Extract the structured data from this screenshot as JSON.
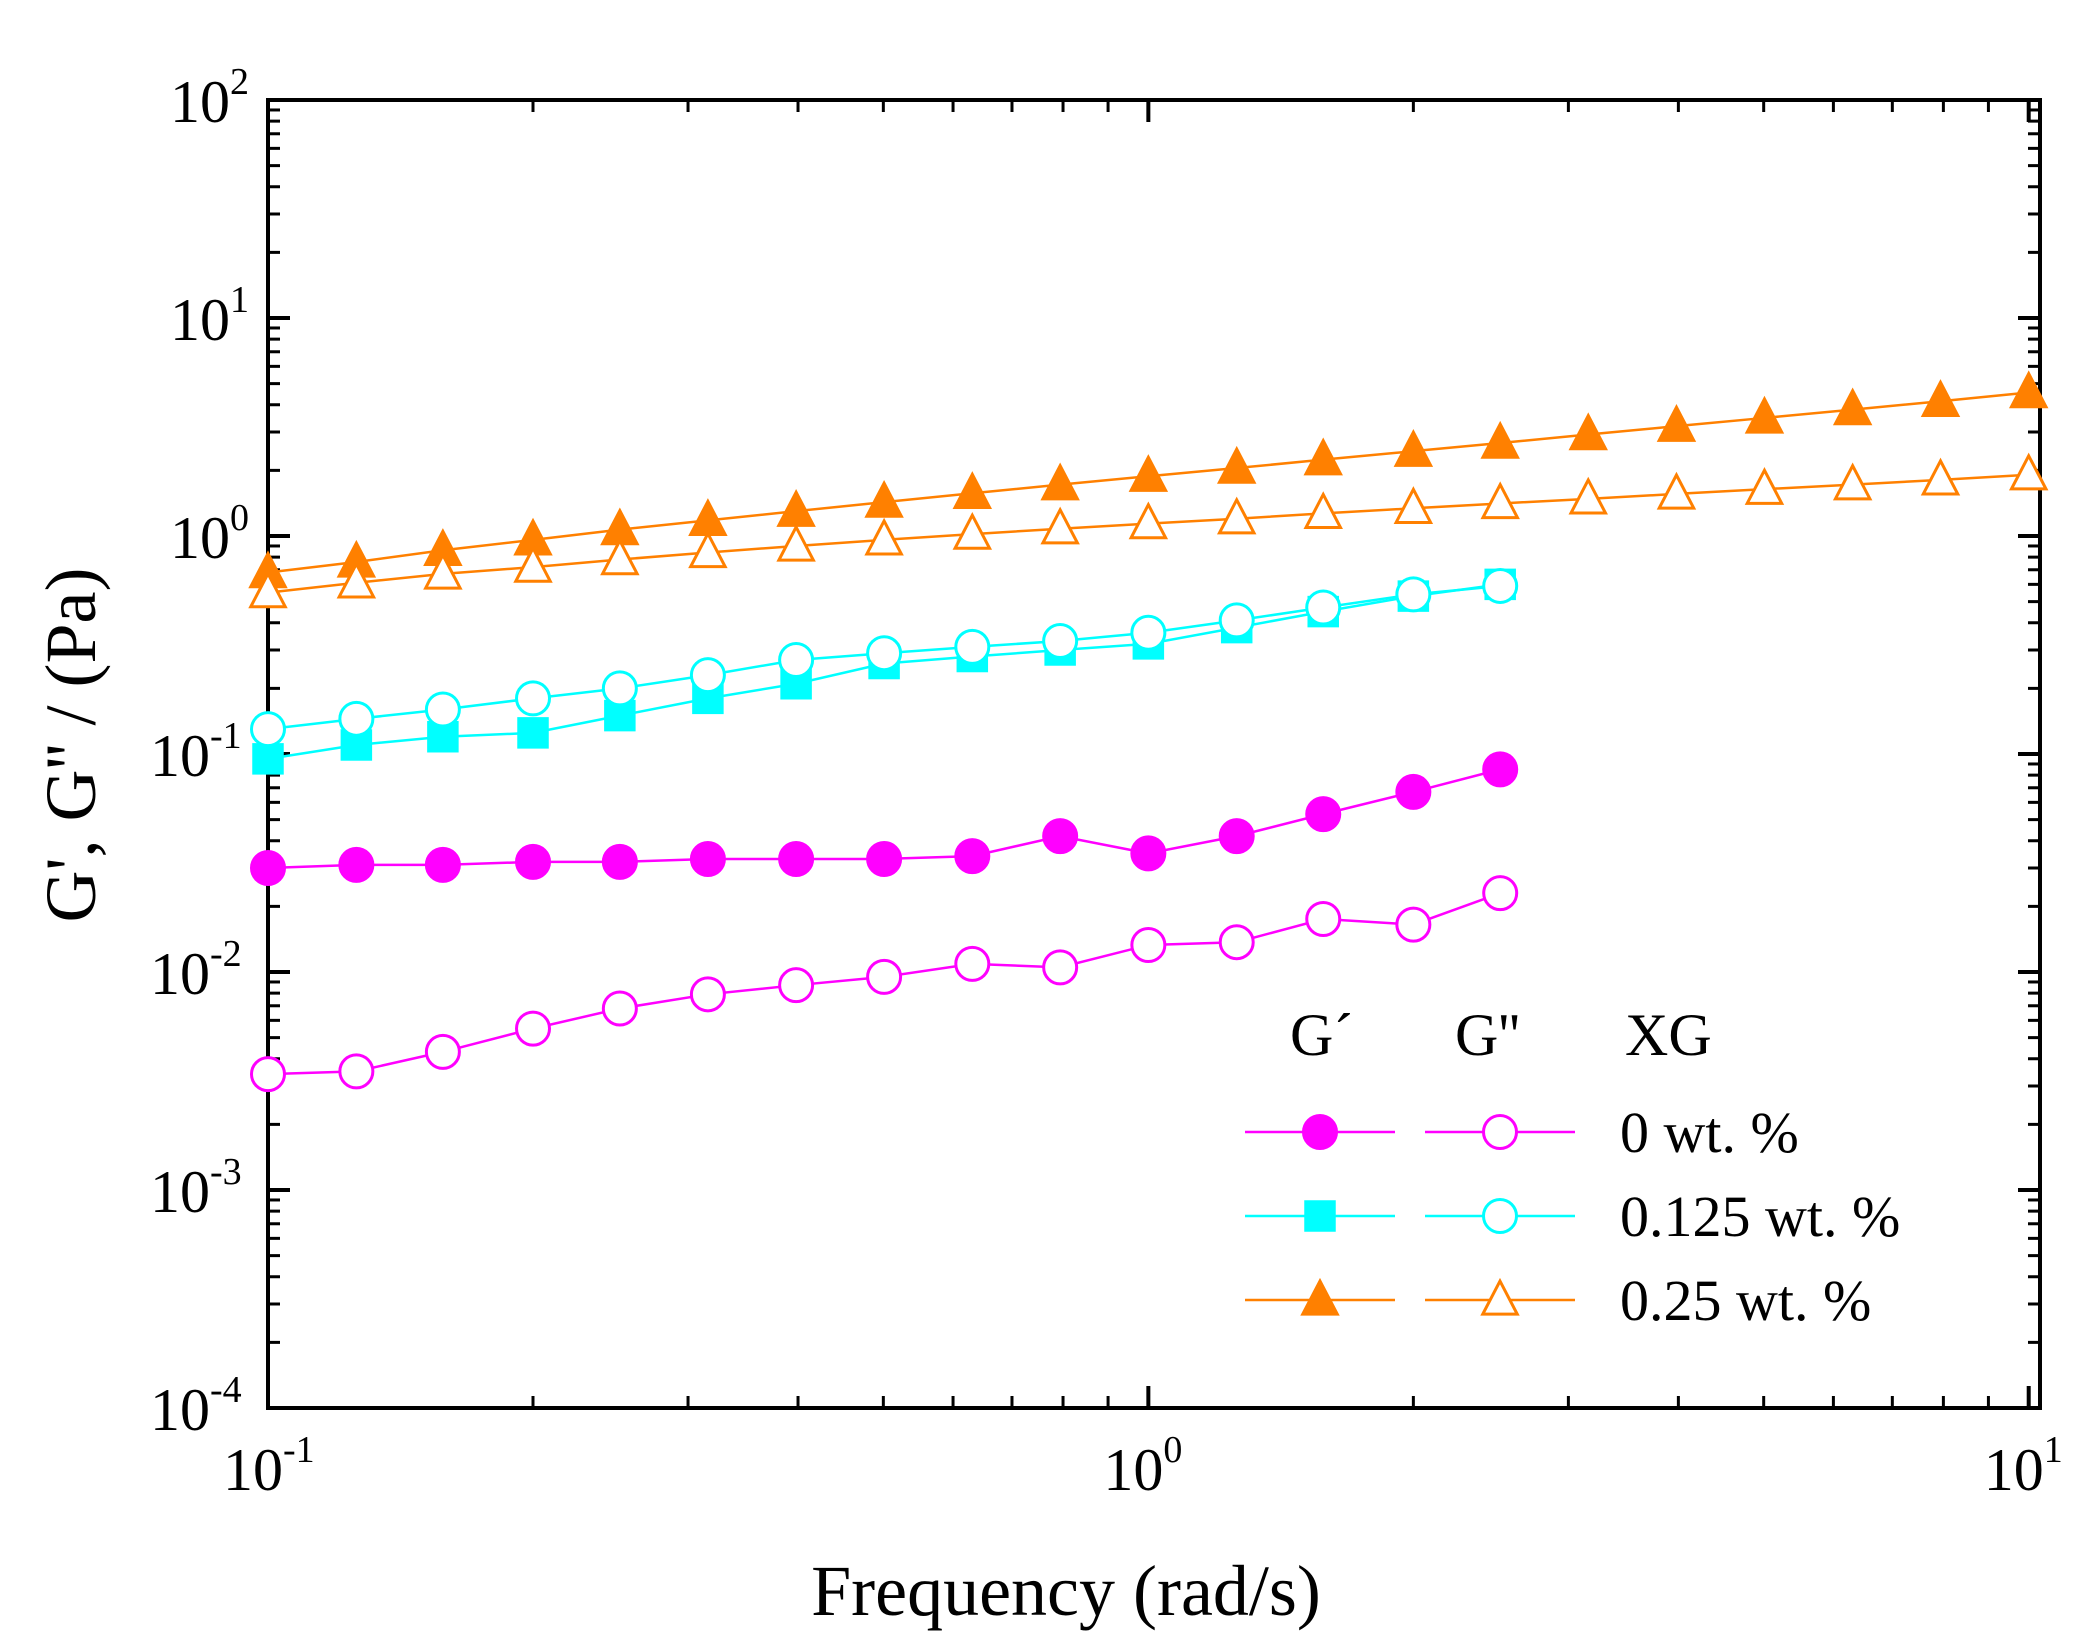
{
  "chart_data": {
    "type": "line",
    "title": "",
    "xlabel": "Frequency (rad/s)",
    "ylabel": "G', G'' / (Pa)",
    "xscale": "log",
    "yscale": "log",
    "xlim": [
      0.1,
      10.3
    ],
    "ylim": [
      0.0001,
      100
    ],
    "x_ticks": [
      {
        "base": "10",
        "exp": "-1",
        "value": 0.1
      },
      {
        "base": "10",
        "exp": "0",
        "value": 1
      },
      {
        "base": "10",
        "exp": "1",
        "value": 10
      }
    ],
    "y_ticks": [
      {
        "base": "10",
        "exp": "-4",
        "value": 0.0001
      },
      {
        "base": "10",
        "exp": "-3",
        "value": 0.001
      },
      {
        "base": "10",
        "exp": "-2",
        "value": 0.01
      },
      {
        "base": "10",
        "exp": "-1",
        "value": 0.1
      },
      {
        "base": "10",
        "exp": "0",
        "value": 1
      },
      {
        "base": "10",
        "exp": "1",
        "value": 10
      },
      {
        "base": "10",
        "exp": "2",
        "value": 100
      }
    ],
    "legend": {
      "position": "lower-right",
      "headers": [
        "G´",
        "G''",
        "XG"
      ]
    },
    "series": [
      {
        "name": "G' 0 wt. %",
        "group": "0 wt. %",
        "modulus": "G'",
        "color": "#ff00ff",
        "marker": "circle",
        "filled": true,
        "x": [
          0.1,
          0.126,
          0.158,
          0.2,
          0.251,
          0.316,
          0.398,
          0.501,
          0.631,
          0.794,
          1.0,
          1.26,
          1.58,
          2.0,
          2.51
        ],
        "values": [
          0.03,
          0.031,
          0.031,
          0.032,
          0.032,
          0.033,
          0.033,
          0.033,
          0.034,
          0.042,
          0.035,
          0.042,
          0.053,
          0.067,
          0.085
        ]
      },
      {
        "name": "G'' 0 wt. %",
        "group": "0 wt. %",
        "modulus": "G''",
        "color": "#ff00ff",
        "marker": "circle",
        "filled": false,
        "x": [
          0.1,
          0.126,
          0.158,
          0.2,
          0.251,
          0.316,
          0.398,
          0.501,
          0.631,
          0.794,
          1.0,
          1.26,
          1.58,
          2.0,
          2.51
        ],
        "values": [
          0.0034,
          0.0035,
          0.0043,
          0.0055,
          0.0068,
          0.0079,
          0.0087,
          0.0095,
          0.0109,
          0.0105,
          0.0133,
          0.0137,
          0.0175,
          0.0165,
          0.023
        ]
      },
      {
        "name": "G' 0.125 wt. %",
        "group": "0.125 wt. %",
        "modulus": "G'",
        "color": "#00ffff",
        "marker": "square",
        "filled": true,
        "x": [
          0.1,
          0.126,
          0.158,
          0.2,
          0.251,
          0.316,
          0.398,
          0.501,
          0.631,
          0.794,
          1.0,
          1.26,
          1.58,
          2.0,
          2.51
        ],
        "values": [
          0.095,
          0.11,
          0.12,
          0.125,
          0.15,
          0.18,
          0.21,
          0.26,
          0.28,
          0.3,
          0.32,
          0.38,
          0.45,
          0.53,
          0.6
        ]
      },
      {
        "name": "G'' 0.125 wt. %",
        "group": "0.125 wt. %",
        "modulus": "G''",
        "color": "#00ffff",
        "marker": "circle",
        "filled": false,
        "x": [
          0.1,
          0.126,
          0.158,
          0.2,
          0.251,
          0.316,
          0.398,
          0.501,
          0.631,
          0.794,
          1.0,
          1.26,
          1.58,
          2.0,
          2.51
        ],
        "values": [
          0.13,
          0.145,
          0.16,
          0.18,
          0.2,
          0.23,
          0.27,
          0.29,
          0.31,
          0.33,
          0.36,
          0.41,
          0.47,
          0.54,
          0.59
        ]
      },
      {
        "name": "G' 0.25 wt. %",
        "group": "0.25 wt. %",
        "modulus": "G'",
        "color": "#ff8000",
        "marker": "triangle",
        "filled": true,
        "x": [
          0.1,
          0.126,
          0.158,
          0.2,
          0.251,
          0.316,
          0.398,
          0.501,
          0.631,
          0.794,
          1.0,
          1.26,
          1.58,
          2.0,
          2.51,
          3.16,
          3.98,
          5.01,
          6.31,
          7.94,
          10.0
        ],
        "values": [
          0.68,
          0.76,
          0.86,
          0.96,
          1.07,
          1.18,
          1.3,
          1.43,
          1.57,
          1.72,
          1.88,
          2.05,
          2.24,
          2.45,
          2.67,
          2.92,
          3.19,
          3.48,
          3.8,
          4.15,
          4.55
        ]
      },
      {
        "name": "G'' 0.25 wt. %",
        "group": "0.25 wt. %",
        "modulus": "G''",
        "color": "#ff8000",
        "marker": "triangle",
        "filled": false,
        "x": [
          0.1,
          0.126,
          0.158,
          0.2,
          0.251,
          0.316,
          0.398,
          0.501,
          0.631,
          0.794,
          1.0,
          1.26,
          1.58,
          2.0,
          2.51,
          3.16,
          3.98,
          5.01,
          6.31,
          7.94,
          10.0
        ],
        "values": [
          0.55,
          0.61,
          0.67,
          0.72,
          0.78,
          0.84,
          0.9,
          0.96,
          1.02,
          1.08,
          1.14,
          1.2,
          1.27,
          1.34,
          1.41,
          1.48,
          1.56,
          1.64,
          1.72,
          1.81,
          1.91
        ]
      }
    ],
    "legend_rows": [
      {
        "label": "0 wt. %",
        "color": "#ff00ff",
        "filled_marker": "circle",
        "open_marker": "circle"
      },
      {
        "label": "0.125 wt. %",
        "color": "#00ffff",
        "filled_marker": "square",
        "open_marker": "circle"
      },
      {
        "label": "0.25 wt. %",
        "color": "#ff8000",
        "filled_marker": "triangle",
        "open_marker": "triangle"
      }
    ]
  }
}
